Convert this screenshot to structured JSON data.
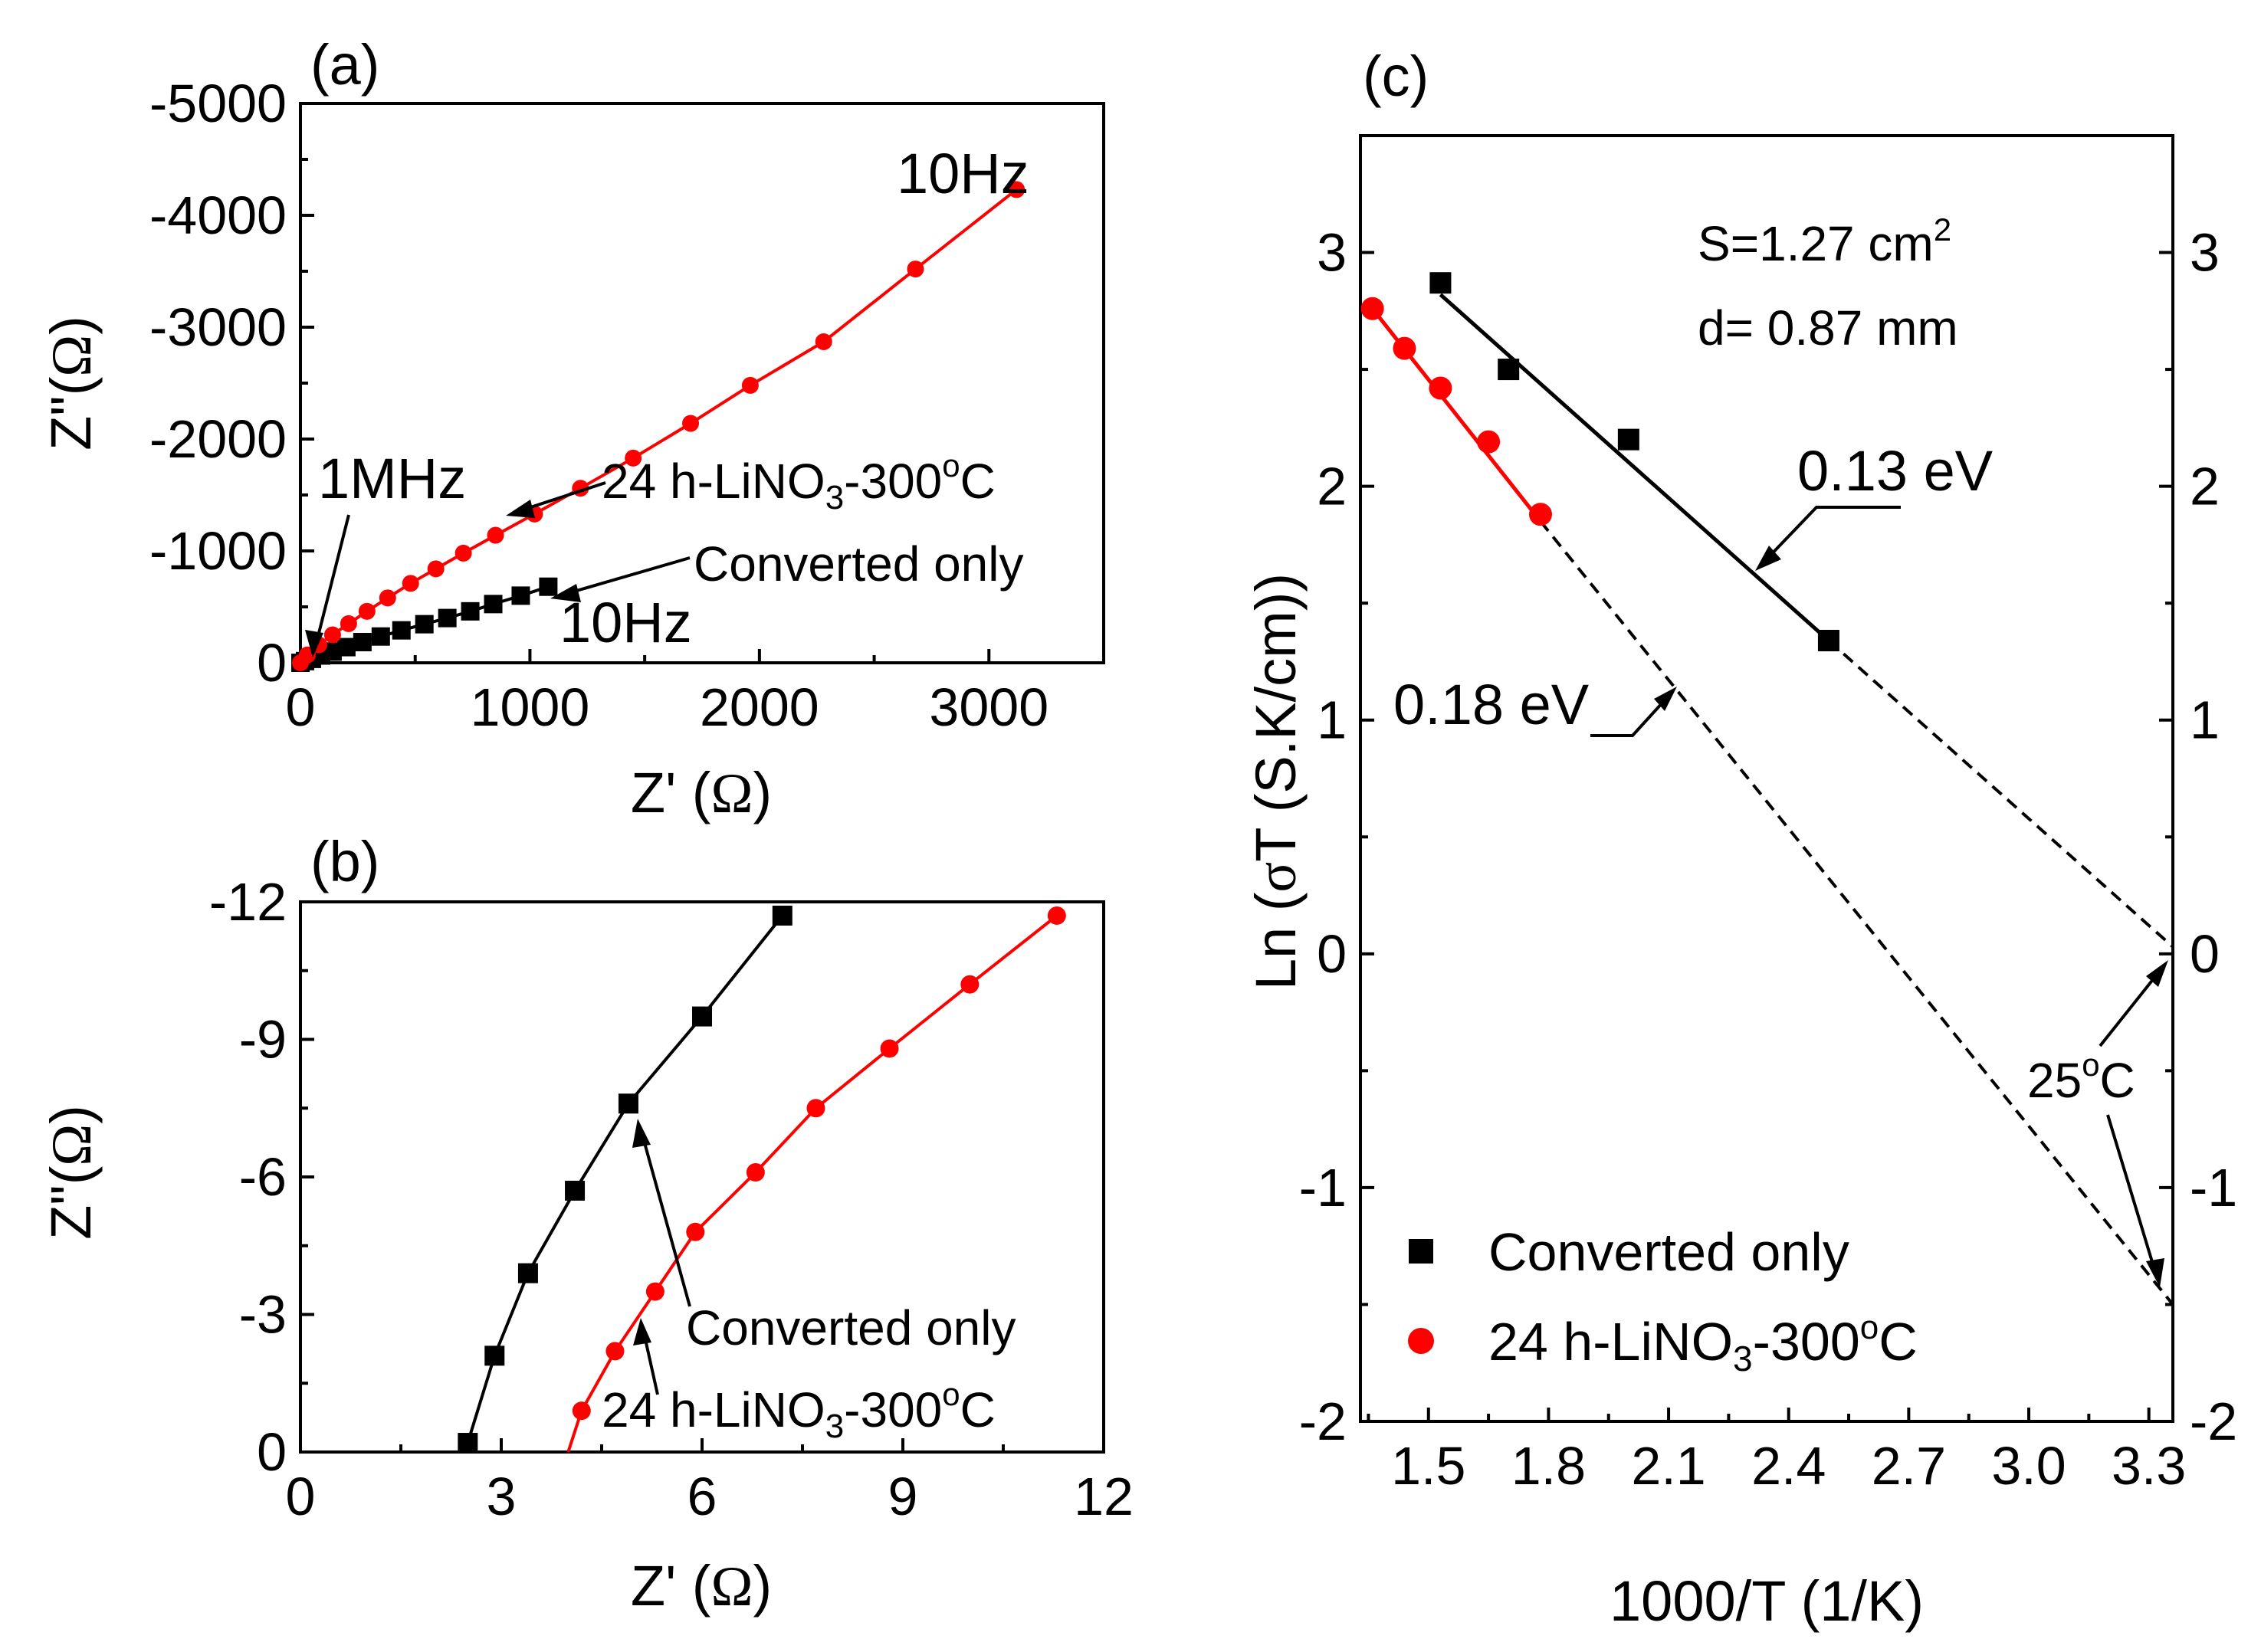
{
  "colors": {
    "black": "#000000",
    "red": "#ff0000"
  },
  "panels": {
    "a": {
      "label": "(a)",
      "xlabel": "Z' (",
      "ylabel": "Z\"(",
      "omega": "Ω",
      "close": ")",
      "xticks": [
        "0",
        "1000",
        "2000",
        "3000"
      ],
      "yticks": [
        "0",
        "-1000",
        "-2000",
        "-3000",
        "-4000",
        "-5000"
      ],
      "ann_10hz_red": "10Hz",
      "ann_10hz_black": "10Hz",
      "ann_1mhz": "1MHz",
      "ann_series2_pre": "24 h-LiNO",
      "ann_series2_sub": "3",
      "ann_series2_post": "-300",
      "ann_series2_deg": "o",
      "ann_series2_c": "C",
      "ann_series1": "Converted only"
    },
    "b": {
      "label": "(b)",
      "xlabel": "Z' (",
      "ylabel": "Z\"(",
      "omega": "Ω",
      "close": ")",
      "xticks": [
        "0",
        "3",
        "6",
        "9",
        "12"
      ],
      "yticks": [
        "0",
        "-3",
        "-6",
        "-9",
        "-12"
      ],
      "ann_series1": "Converted only",
      "ann_series2_pre": "24 h-LiNO",
      "ann_series2_sub": "3",
      "ann_series2_post": "-300",
      "ann_series2_deg": "o",
      "ann_series2_c": "C"
    },
    "c": {
      "label": "(c)",
      "xlabel": "1000/T (1/K)",
      "ylabel_pre": "Ln (",
      "ylabel_sigma": "σ",
      "ylabel_post": "T (S.K/cm))",
      "xticks": [
        "1.5",
        "1.8",
        "2.1",
        "2.4",
        "2.7",
        "3.0",
        "3.3"
      ],
      "yticks_left": [
        "-2",
        "-1",
        "0",
        "1",
        "2",
        "3"
      ],
      "yticks_right": [
        "-2",
        "-1",
        "0",
        "1",
        "2",
        "3"
      ],
      "info_s_pre": "S=1.27 cm",
      "info_s_sup": "2",
      "info_d": "d= 0.87 mm",
      "ann_ea1": "0.13 eV",
      "ann_ea2": "0.18 eV",
      "ann_25_pre": "25",
      "ann_25_deg": "o",
      "ann_25_c": "C",
      "legend1": "Converted only",
      "legend2_pre": "24 h-LiNO",
      "legend2_sub": "3",
      "legend2_post": "-300",
      "legend2_deg": "o",
      "legend2_c": "C"
    }
  },
  "chart_data": [
    {
      "panel": "a",
      "type": "scatter",
      "title": "(a)",
      "xlabel": "Z' (Ω)",
      "ylabel": "Z\"(Ω)",
      "xlim": [
        0,
        3500
      ],
      "ylim": [
        0,
        -5000
      ],
      "series": [
        {
          "name": "Converted only",
          "marker": "square",
          "x": [
            0,
            20,
            50,
            90,
            140,
            200,
            270,
            350,
            440,
            540,
            640,
            740,
            840,
            960,
            1080
          ],
          "y": [
            0,
            -15,
            -35,
            -65,
            -100,
            -140,
            -185,
            -235,
            -290,
            -345,
            -400,
            -460,
            -525,
            -600,
            -680
          ]
        },
        {
          "name": "24 h-LiNO3-300oC",
          "marker": "circle",
          "x": [
            0,
            30,
            80,
            140,
            210,
            290,
            380,
            480,
            590,
            710,
            850,
            1020,
            1220,
            1450,
            1700,
            1960,
            2280,
            2680,
            3120
          ],
          "y": [
            0,
            -70,
            -160,
            -250,
            -350,
            -460,
            -580,
            -710,
            -840,
            -980,
            -1140,
            -1330,
            -1560,
            -1830,
            -2140,
            -2480,
            -2870,
            -3520,
            -4230
          ]
        }
      ]
    },
    {
      "panel": "b",
      "type": "scatter",
      "title": "(b)",
      "xlabel": "Z' (Ω)",
      "ylabel": "Z\"(Ω)",
      "xlim": [
        0,
        12
      ],
      "ylim": [
        0,
        -12
      ],
      "series": [
        {
          "name": "Converted only",
          "marker": "square",
          "x": [
            2.5,
            2.9,
            3.4,
            4.1,
            4.9,
            6.0,
            7.2
          ],
          "y": [
            -0.2,
            -2.1,
            -3.9,
            -5.7,
            -7.6,
            -9.5,
            -11.7
          ]
        },
        {
          "name": "24 h-LiNO3-300oC",
          "marker": "circle",
          "x": [
            4.2,
            4.7,
            5.3,
            5.9,
            6.8,
            7.7,
            8.8,
            10.0,
            11.3
          ],
          "y": [
            -0.9,
            -2.2,
            -3.5,
            -4.8,
            -6.1,
            -7.5,
            -8.8,
            -10.2,
            -11.7
          ]
        }
      ]
    },
    {
      "panel": "c",
      "type": "scatter",
      "title": "(c)",
      "xlabel": "1000/T (1/K)",
      "ylabel": "Ln (σT (S.K/cm))",
      "xlim": [
        1.33,
        3.36
      ],
      "ylim": [
        -2,
        3.5
      ],
      "series": [
        {
          "name": "Converted only",
          "marker": "square",
          "x": [
            1.53,
            1.7,
            2.0,
            2.5
          ],
          "y": [
            2.87,
            2.5,
            2.2,
            1.34
          ]
        },
        {
          "name": "24 h-LiNO3-300oC",
          "marker": "circle",
          "x": [
            1.36,
            1.44,
            1.53,
            1.65,
            1.78
          ],
          "y": [
            2.76,
            2.59,
            2.42,
            2.19,
            1.88
          ]
        }
      ],
      "fits": [
        {
          "name": "0.13 eV",
          "x": [
            1.53,
            2.5
          ],
          "y": [
            2.82,
            1.34
          ],
          "extrapolate_to": [
            3.36,
            0.03
          ]
        },
        {
          "name": "0.18 eV",
          "x": [
            1.36,
            1.78
          ],
          "y": [
            2.76,
            1.85
          ],
          "extrapolate_to": [
            3.36,
            -1.5
          ]
        }
      ]
    }
  ]
}
